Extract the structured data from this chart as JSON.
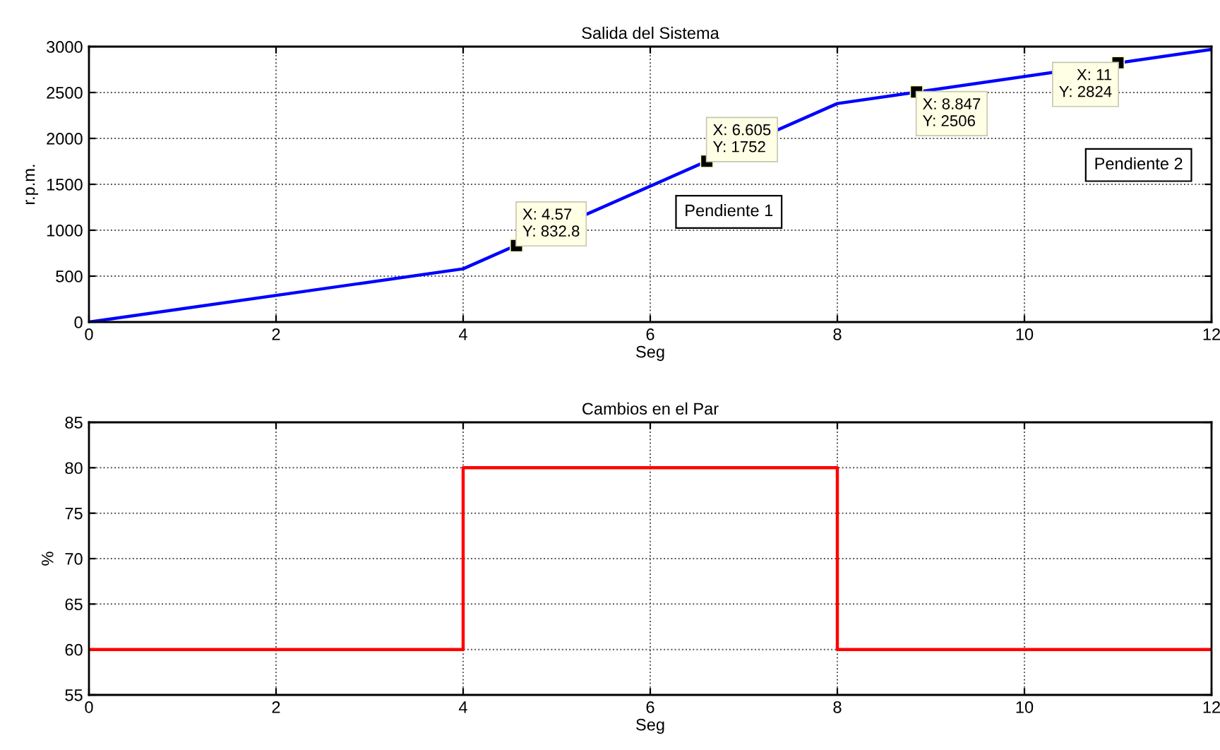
{
  "chart_data": [
    {
      "type": "line",
      "title": "Salida del Sistema",
      "xlabel": "Seg",
      "ylabel": "r.p.m.",
      "series": [
        {
          "color": "#0000ff",
          "x": [
            0,
            4,
            8,
            12
          ],
          "values": [
            0,
            580,
            2380,
            2970
          ]
        },
        {
          "type": "scatter",
          "color": "#000000",
          "marker": "square",
          "x": [
            4.57,
            6.605,
            8.847,
            11
          ],
          "values": [
            832.8,
            1752,
            2506,
            2824
          ]
        }
      ],
      "annotations": [
        {
          "text": "X: 4.57\nY: 832.8",
          "x": 4.57,
          "y": 832.8
        },
        {
          "text": "X: 6.605\nY: 1752",
          "x": 6.605,
          "y": 1752
        },
        {
          "text": "X: 8.847\nY: 2506",
          "x": 8.847,
          "y": 2506
        },
        {
          "text": "X: 11\nY: 2824",
          "x": 11,
          "y": 2824
        },
        "Pendiente 1",
        "Pendiente 2"
      ],
      "xlim": [
        0,
        12
      ],
      "xticks": [
        0,
        2,
        4,
        6,
        8,
        10,
        12
      ],
      "ylim": [
        0,
        3000
      ],
      "yticks": [
        0,
        500,
        1000,
        1500,
        2000,
        2500,
        3000
      ],
      "grid": true
    },
    {
      "type": "line",
      "title": "Cambios en el Par",
      "xlabel": "Seg",
      "ylabel": "%",
      "series": [
        {
          "color": "#ff0000",
          "x": [
            0,
            4,
            4,
            8,
            8,
            12
          ],
          "values": [
            60,
            60,
            80,
            80,
            60,
            60
          ]
        }
      ],
      "xlim": [
        0,
        12
      ],
      "xticks": [
        0,
        2,
        4,
        6,
        8,
        10,
        12
      ],
      "ylim": [
        55,
        85
      ],
      "yticks": [
        55,
        60,
        65,
        70,
        75,
        80,
        85
      ],
      "grid": true
    }
  ]
}
